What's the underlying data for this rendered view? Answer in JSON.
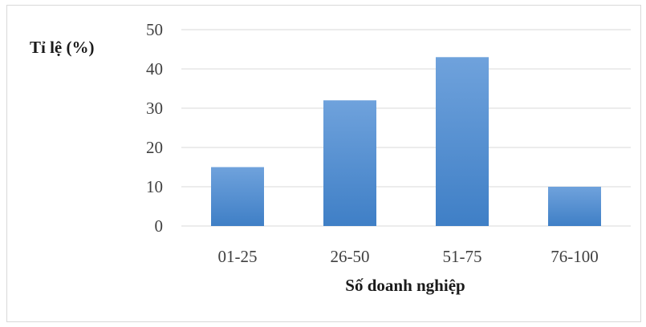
{
  "chart_data": {
    "type": "bar",
    "title": "",
    "ylabel": "Tỉ lệ (%)",
    "xlabel": "Số doanh nghiệp",
    "categories": [
      "01-25",
      "26-50",
      "51-75",
      "76-100"
    ],
    "values": [
      15,
      32,
      43,
      10
    ],
    "ylim": [
      0,
      50
    ],
    "yticks": [
      "0",
      "10",
      "20",
      "30",
      "40",
      "50"
    ],
    "grid": true,
    "legend": "none",
    "colors": {
      "bar_top": "#6fa2dc",
      "bar_bottom": "#3f7fc6",
      "grid": "#d9d9d9",
      "text": "#404040",
      "label": "#1a1a1a"
    }
  }
}
